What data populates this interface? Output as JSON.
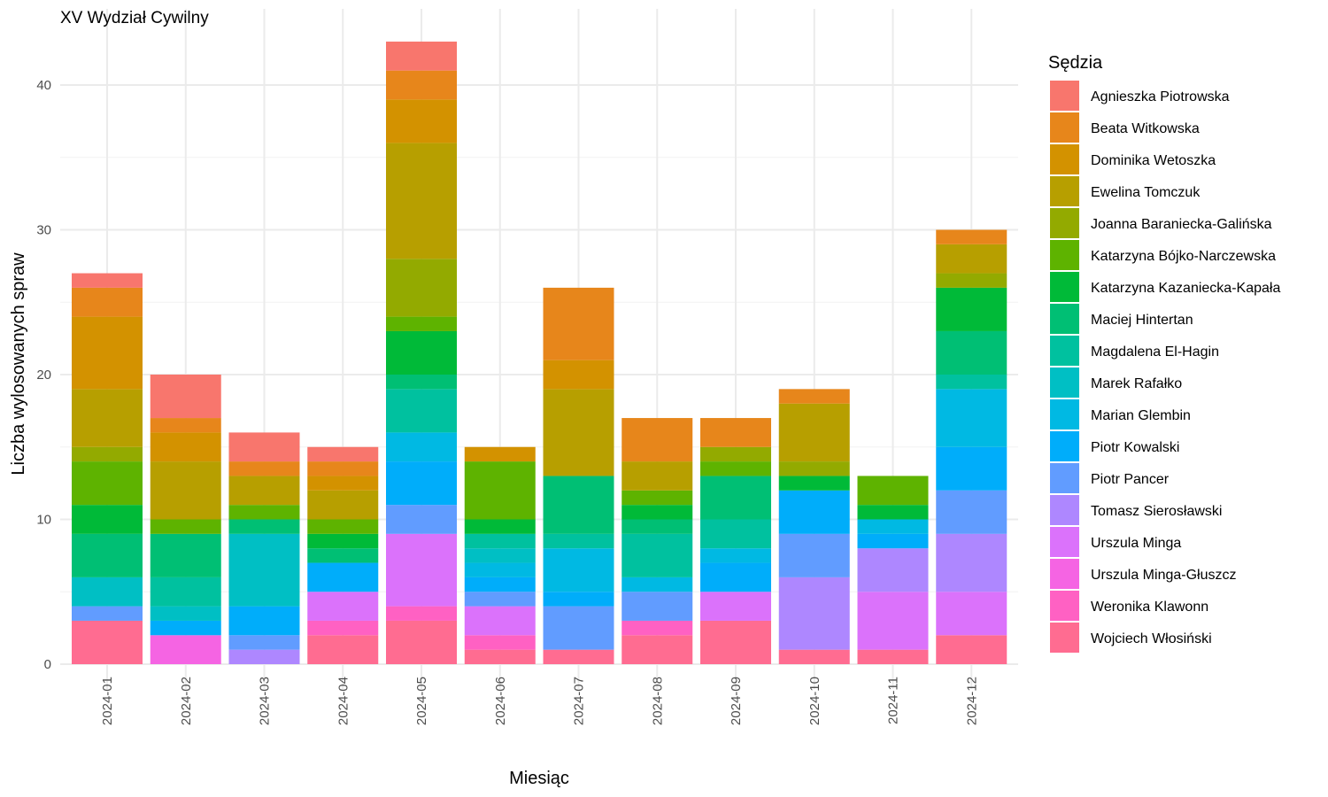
{
  "chart_data": {
    "type": "bar",
    "stacked": true,
    "title": "XV Wydział Cywilny",
    "xlabel": "Miesiąc",
    "ylabel": "Liczba wylosowanych spraw",
    "ylim": [
      0,
      45
    ],
    "yticks": [
      0,
      10,
      20,
      30,
      40
    ],
    "grid": true,
    "legend_title": "Sędzia",
    "legend_position": "right",
    "categories": [
      "2024-01",
      "2024-02",
      "2024-03",
      "2024-04",
      "2024-05",
      "2024-06",
      "2024-07",
      "2024-08",
      "2024-09",
      "2024-10",
      "2024-11",
      "2024-12"
    ],
    "series": [
      {
        "name": "Agnieszka Piotrowska",
        "color": "#F8766D",
        "values": [
          1,
          3,
          2,
          1,
          2,
          0,
          0,
          0,
          0,
          0,
          0,
          0
        ]
      },
      {
        "name": "Beata Witkowska",
        "color": "#E7861B",
        "values": [
          2,
          1,
          1,
          1,
          2,
          0,
          5,
          3,
          2,
          1,
          0,
          1
        ]
      },
      {
        "name": "Dominika Wetoszka",
        "color": "#D39200",
        "values": [
          5,
          2,
          0,
          1,
          3,
          1,
          2,
          0,
          0,
          0,
          0,
          0
        ]
      },
      {
        "name": "Ewelina Tomczuk",
        "color": "#B79F00",
        "values": [
          4,
          4,
          2,
          2,
          8,
          0,
          6,
          2,
          0,
          4,
          0,
          2
        ]
      },
      {
        "name": "Joanna Baraniecka-Galińska",
        "color": "#93AA00",
        "values": [
          1,
          0,
          0,
          0,
          4,
          0,
          0,
          0,
          1,
          1,
          0,
          1
        ]
      },
      {
        "name": "Katarzyna Bójko-Narczewska",
        "color": "#5EB300",
        "values": [
          3,
          1,
          1,
          1,
          1,
          4,
          0,
          1,
          1,
          0,
          2,
          0
        ]
      },
      {
        "name": "Katarzyna Kazaniecka-Kapała",
        "color": "#00BA38",
        "values": [
          2,
          0,
          0,
          1,
          3,
          1,
          0,
          1,
          0,
          1,
          1,
          3
        ]
      },
      {
        "name": "Maciej Hintertan",
        "color": "#00BF74",
        "values": [
          3,
          3,
          1,
          1,
          1,
          0,
          4,
          1,
          3,
          0,
          0,
          3
        ]
      },
      {
        "name": "Magdalena El-Hagin",
        "color": "#00C19F",
        "values": [
          0,
          2,
          0,
          0,
          3,
          1,
          1,
          3,
          2,
          0,
          0,
          1
        ]
      },
      {
        "name": "Marek Rafałko",
        "color": "#00BFC4",
        "values": [
          2,
          1,
          5,
          0,
          0,
          1,
          0,
          0,
          0,
          0,
          0,
          0
        ]
      },
      {
        "name": "Marian Glembin",
        "color": "#00B9E3",
        "values": [
          0,
          0,
          0,
          0,
          2,
          1,
          3,
          1,
          1,
          0,
          1,
          4
        ]
      },
      {
        "name": "Piotr Kowalski",
        "color": "#00ADFA",
        "values": [
          0,
          1,
          2,
          2,
          3,
          1,
          1,
          0,
          2,
          3,
          1,
          3
        ]
      },
      {
        "name": "Piotr Pancer",
        "color": "#619CFF",
        "values": [
          1,
          0,
          1,
          0,
          2,
          1,
          3,
          2,
          0,
          3,
          0,
          3
        ]
      },
      {
        "name": "Tomasz Sierosławski",
        "color": "#AE87FF",
        "values": [
          0,
          0,
          1,
          0,
          0,
          0,
          0,
          0,
          0,
          5,
          3,
          4
        ]
      },
      {
        "name": "Urszula Minga",
        "color": "#DB72FB",
        "values": [
          0,
          0,
          0,
          2,
          5,
          2,
          0,
          0,
          2,
          0,
          4,
          3
        ]
      },
      {
        "name": "Urszula Minga-Głuszcz",
        "color": "#F564E3",
        "values": [
          0,
          2,
          0,
          0,
          0,
          0,
          0,
          0,
          0,
          0,
          0,
          0
        ]
      },
      {
        "name": "Weronika Klawonn",
        "color": "#FF61C3",
        "values": [
          0,
          0,
          0,
          1,
          1,
          1,
          0,
          1,
          0,
          0,
          0,
          0
        ]
      },
      {
        "name": "Wojciech Włosiński",
        "color": "#FF6C91",
        "values": [
          3,
          0,
          0,
          2,
          3,
          1,
          1,
          2,
          3,
          1,
          1,
          2
        ]
      }
    ]
  }
}
